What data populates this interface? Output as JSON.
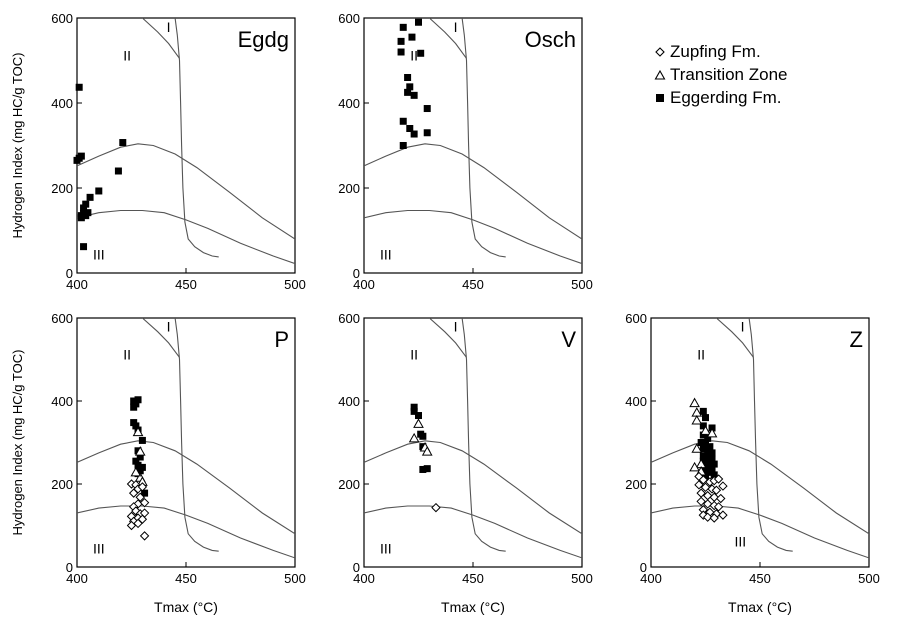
{
  "legend": {
    "items": [
      {
        "label": "Zupfing Fm.",
        "marker": "diamond"
      },
      {
        "label": "Transition Zone",
        "marker": "triangle"
      },
      {
        "label": "Eggerding Fm.",
        "marker": "square"
      }
    ]
  },
  "chart_data": [
    {
      "type": "scatter",
      "title": "Egdg",
      "xlabel": "",
      "ylabel": "Hydrogen Index (mg HC/g TOC)",
      "xlim": [
        400,
        500
      ],
      "ylim": [
        0,
        600
      ],
      "xticks": [
        "400",
        "450",
        "500"
      ],
      "yticks": [
        "0",
        "200",
        "400",
        "600"
      ],
      "zone_labels": [
        "I",
        "II",
        "III"
      ],
      "series": [
        {
          "marker": "square",
          "points": [
            [
              400,
              265
            ],
            [
              401,
              270
            ],
            [
              402,
              275
            ],
            [
              401,
              437
            ],
            [
              402,
              135
            ],
            [
              402,
              130
            ],
            [
              403,
              140
            ],
            [
              403,
              153
            ],
            [
              404,
              162
            ],
            [
              404,
              135
            ],
            [
              405,
              142
            ],
            [
              406,
              178
            ],
            [
              410,
              193
            ],
            [
              419,
              240
            ],
            [
              421,
              307
            ],
            [
              403,
              62
            ]
          ]
        }
      ]
    },
    {
      "type": "scatter",
      "title": "Osch",
      "xlabel": "",
      "ylabel": "",
      "xlim": [
        400,
        500
      ],
      "ylim": [
        0,
        600
      ],
      "xticks": [
        "400",
        "450",
        "500"
      ],
      "yticks": [
        "0",
        "200",
        "400",
        "600"
      ],
      "zone_labels": [
        "I",
        "II",
        "III"
      ],
      "series": [
        {
          "marker": "square",
          "points": [
            [
              425,
              590
            ],
            [
              418,
              578
            ],
            [
              422,
              555
            ],
            [
              417,
              545
            ],
            [
              417,
              520
            ],
            [
              426,
              517
            ],
            [
              420,
              460
            ],
            [
              421,
              438
            ],
            [
              420,
              425
            ],
            [
              423,
              418
            ],
            [
              429,
              387
            ],
            [
              418,
              357
            ],
            [
              421,
              340
            ],
            [
              429,
              330
            ],
            [
              423,
              327
            ],
            [
              418,
              300
            ]
          ]
        }
      ]
    },
    {
      "type": "scatter",
      "title": "P",
      "xlabel": "Tmax (°C)",
      "ylabel": "Hydrogen Index (mg HC/g TOC)",
      "xlim": [
        400,
        500
      ],
      "ylim": [
        0,
        600
      ],
      "xticks": [
        "400",
        "450",
        "500"
      ],
      "yticks": [
        "0",
        "200",
        "400",
        "600"
      ],
      "zone_labels": [
        "I",
        "II",
        "III"
      ],
      "series": [
        {
          "marker": "square",
          "points": [
            [
              426,
              400
            ],
            [
              428,
              403
            ],
            [
              427,
              393
            ],
            [
              426,
              385
            ],
            [
              426,
              348
            ],
            [
              427,
              340
            ],
            [
              428,
              330
            ],
            [
              430,
              305
            ],
            [
              428,
              280
            ],
            [
              429,
              265
            ],
            [
              427,
              255
            ],
            [
              428,
              245
            ],
            [
              430,
              240
            ],
            [
              429,
              232
            ],
            [
              428,
              225
            ],
            [
              431,
              178
            ]
          ]
        },
        {
          "marker": "triangle",
          "points": [
            [
              428,
              325
            ],
            [
              429,
              278
            ],
            [
              429,
              215
            ],
            [
              430,
              205
            ],
            [
              427,
              228
            ]
          ]
        },
        {
          "marker": "diamond",
          "points": [
            [
              425,
              200
            ],
            [
              427,
              198
            ],
            [
              428,
              188
            ],
            [
              430,
              193
            ],
            [
              426,
              178
            ],
            [
              429,
              168
            ],
            [
              428,
              152
            ],
            [
              431,
              155
            ],
            [
              426,
              145
            ],
            [
              427,
              135
            ],
            [
              429,
              128
            ],
            [
              431,
              130
            ],
            [
              425,
              122
            ],
            [
              428,
              118
            ],
            [
              430,
              115
            ],
            [
              426,
              110
            ],
            [
              428,
              105
            ],
            [
              425,
              100
            ],
            [
              431,
              75
            ]
          ]
        }
      ]
    },
    {
      "type": "scatter",
      "title": "V",
      "xlabel": "Tmax (°C)",
      "ylabel": "",
      "xlim": [
        400,
        500
      ],
      "ylim": [
        0,
        600
      ],
      "xticks": [
        "400",
        "450",
        "500"
      ],
      "yticks": [
        "0",
        "200",
        "400",
        "600"
      ],
      "zone_labels": [
        "I",
        "II",
        "III"
      ],
      "series": [
        {
          "marker": "square",
          "points": [
            [
              423,
              385
            ],
            [
              423,
              375
            ],
            [
              425,
              365
            ],
            [
              426,
              320
            ],
            [
              427,
              315
            ],
            [
              427,
              290
            ],
            [
              427,
              235
            ],
            [
              429,
              237
            ]
          ]
        },
        {
          "marker": "triangle",
          "points": [
            [
              425,
              345
            ],
            [
              428,
              288
            ],
            [
              429,
              278
            ],
            [
              423,
              310
            ]
          ]
        },
        {
          "marker": "diamond",
          "points": [
            [
              433,
              143
            ]
          ]
        }
      ]
    },
    {
      "type": "scatter",
      "title": "Z",
      "xlabel": "Tmax (°C)",
      "ylabel": "",
      "xlim": [
        400,
        500
      ],
      "ylim": [
        0,
        600
      ],
      "xticks": [
        "400",
        "450",
        "500"
      ],
      "yticks": [
        "0",
        "200",
        "400",
        "600"
      ],
      "zone_labels": [
        "I",
        "II",
        "III"
      ],
      "series": [
        {
          "marker": "square",
          "points": [
            [
              424,
              375
            ],
            [
              425,
              360
            ],
            [
              424,
              340
            ],
            [
              428,
              335
            ],
            [
              424,
              318
            ],
            [
              426,
              310
            ],
            [
              423,
              300
            ],
            [
              425,
              295
            ],
            [
              427,
              290
            ],
            [
              424,
              285
            ],
            [
              426,
              278
            ],
            [
              428,
              275
            ],
            [
              424,
              268
            ],
            [
              426,
              262
            ],
            [
              428,
              260
            ],
            [
              424,
              255
            ],
            [
              427,
              250
            ],
            [
              429,
              248
            ],
            [
              425,
              242
            ],
            [
              428,
              238
            ],
            [
              424,
              232
            ],
            [
              427,
              228
            ],
            [
              429,
              222
            ],
            [
              425,
              218
            ]
          ]
        },
        {
          "marker": "triangle",
          "points": [
            [
              420,
              395
            ],
            [
              421,
              372
            ],
            [
              421,
              353
            ],
            [
              425,
              328
            ],
            [
              428,
              322
            ],
            [
              421,
              285
            ],
            [
              423,
              248
            ],
            [
              420,
              240
            ],
            [
              423,
              230
            ]
          ]
        },
        {
          "marker": "diamond",
          "points": [
            [
              422,
              218
            ],
            [
              424,
              210
            ],
            [
              427,
              205
            ],
            [
              429,
              208
            ],
            [
              431,
              212
            ],
            [
              422,
              198
            ],
            [
              425,
              192
            ],
            [
              428,
              188
            ],
            [
              430,
              185
            ],
            [
              433,
              195
            ],
            [
              423,
              178
            ],
            [
              426,
              172
            ],
            [
              429,
              168
            ],
            [
              432,
              165
            ],
            [
              423,
              158
            ],
            [
              426,
              152
            ],
            [
              429,
              148
            ],
            [
              431,
              145
            ],
            [
              424,
              138
            ],
            [
              427,
              132
            ],
            [
              430,
              128
            ],
            [
              424,
              125
            ],
            [
              426,
              120
            ],
            [
              429,
              118
            ],
            [
              433,
              125
            ]
          ]
        }
      ]
    }
  ]
}
